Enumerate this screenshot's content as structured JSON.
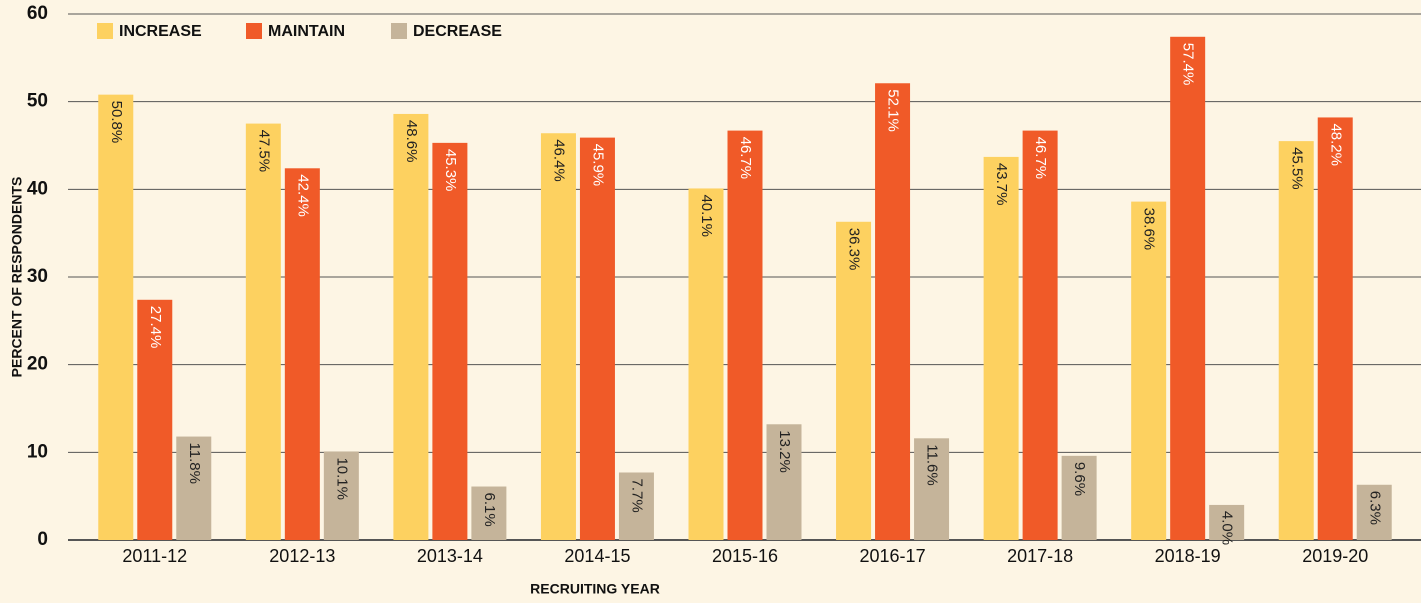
{
  "chart_data": {
    "type": "bar",
    "x_label": "RECRUITING YEAR",
    "y_label": "PERCENT OF RESPONDENTS",
    "categories": [
      "2011-12",
      "2012-13",
      "2013-14",
      "2014-15",
      "2015-16",
      "2016-17",
      "2017-18",
      "2018-19",
      "2019-20"
    ],
    "series": [
      {
        "name": "INCREASE",
        "color": "#fdd160",
        "label_color": "#222222",
        "values": [
          50.8,
          47.5,
          48.6,
          46.4,
          40.1,
          36.3,
          43.7,
          38.6,
          45.5
        ],
        "value_labels": [
          "50.8%",
          "47.5%",
          "48.6%",
          "46.4%",
          "40.1%",
          "36.3%",
          "43.7%",
          "38.6%",
          "45.5%"
        ]
      },
      {
        "name": "MAINTAIN",
        "color": "#f05a28",
        "label_color": "#ffffff",
        "values": [
          27.4,
          42.4,
          45.3,
          45.9,
          46.7,
          52.1,
          46.7,
          57.4,
          48.2
        ],
        "value_labels": [
          "27.4%",
          "42.4%",
          "45.3%",
          "45.9%",
          "46.7%",
          "52.1%",
          "46.7%",
          "57.4%",
          "48.2%"
        ]
      },
      {
        "name": "DECREASE",
        "color": "#c5b49a",
        "label_color": "#222222",
        "values": [
          11.8,
          10.1,
          6.1,
          7.7,
          13.2,
          11.6,
          9.6,
          4.0,
          6.3
        ],
        "value_labels": [
          "11.8%",
          "10.1%",
          "6.1%",
          "7.7%",
          "13.2%",
          "11.6%",
          "9.6%",
          "4.0%",
          "6.3%"
        ]
      }
    ],
    "ylim": [
      0,
      60
    ],
    "yticks": [
      0,
      10,
      20,
      30,
      40,
      50,
      60
    ],
    "grid": true,
    "legend": "top-left"
  }
}
